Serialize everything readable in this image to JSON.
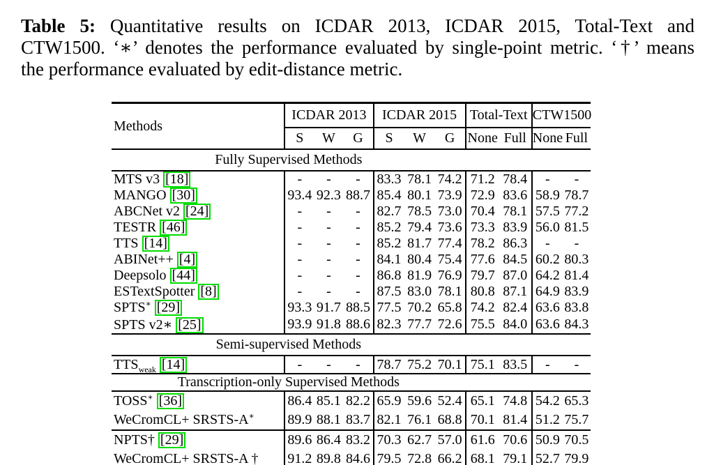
{
  "caption": {
    "label": "Table 5:",
    "lines": [
      "Quantitative results on ICDAR 2013, ICDAR 2015, Total-Text and",
      "CTW1500. ‘∗’ denotes the performance evaluated by single-point metric. ‘†’ means",
      "the performance evaluated by edit-distance metric."
    ]
  },
  "colors": {
    "citation_box_border": "#00dd00",
    "text": "#000000",
    "rules": "#000000"
  },
  "table": {
    "methods_label": "Methods",
    "groups": [
      {
        "label": "ICDAR 2013",
        "cols": [
          "S",
          "W",
          "G"
        ]
      },
      {
        "label": "ICDAR 2015",
        "cols": [
          "S",
          "W",
          "G"
        ]
      },
      {
        "label": "Total-Text",
        "cols": [
          "None",
          "Full"
        ]
      },
      {
        "label": "CTW1500",
        "cols": [
          "None",
          "Full"
        ]
      }
    ],
    "sections": [
      {
        "title": "Fully Supervised Methods",
        "rows": [
          {
            "method": "MTS v3",
            "cite": "18",
            "values": [
              "-",
              "-",
              "-",
              "83.3",
              "78.1",
              "74.2",
              "71.2",
              "78.4",
              "-",
              "-"
            ],
            "bold": []
          },
          {
            "method": "MANGO",
            "cite": "30",
            "values": [
              "93.4",
              "92.3",
              "88.7",
              "85.4",
              "80.1",
              "73.9",
              "72.9",
              "83.6",
              "58.9",
              "78.7"
            ],
            "bold": []
          },
          {
            "method": "ABCNet v2",
            "cite": "24",
            "values": [
              "-",
              "-",
              "-",
              "82.7",
              "78.5",
              "73.0",
              "70.4",
              "78.1",
              "57.5",
              "77.2"
            ],
            "bold": []
          },
          {
            "method": "TESTR",
            "cite": "46",
            "values": [
              "-",
              "-",
              "-",
              "85.2",
              "79.4",
              "73.6",
              "73.3",
              "83.9",
              "56.0",
              "81.5"
            ],
            "bold": []
          },
          {
            "method": "TTS",
            "cite": "14",
            "values": [
              "-",
              "-",
              "-",
              "85.2",
              "81.7",
              "77.4",
              "78.2",
              "86.3",
              "-",
              "-"
            ],
            "bold": []
          },
          {
            "method": "ABINet++",
            "cite": "4",
            "values": [
              "-",
              "-",
              "-",
              "84.1",
              "80.4",
              "75.4",
              "77.6",
              "84.5",
              "60.2",
              "80.3"
            ],
            "bold": []
          },
          {
            "method": "Deepsolo",
            "cite": "44",
            "values": [
              "-",
              "-",
              "-",
              "86.8",
              "81.9",
              "76.9",
              "79.7",
              "87.0",
              "64.2",
              "81.4"
            ],
            "bold": []
          },
          {
            "method": "ESTextSpotter",
            "cite": "8",
            "values": [
              "-",
              "-",
              "-",
              "87.5",
              "83.0",
              "78.1",
              "80.8",
              "87.1",
              "64.9",
              "83.9"
            ],
            "bold": []
          },
          {
            "method": "SPTS",
            "sup": "∗",
            "cite": "29",
            "values": [
              "93.3",
              "91.7",
              "88.5",
              "77.5",
              "70.2",
              "65.8",
              "74.2",
              "82.4",
              "63.6",
              "83.8"
            ],
            "bold": []
          },
          {
            "method": "SPTS v2∗",
            "cite": "25",
            "values": [
              "93.9",
              "91.8",
              "88.6",
              "82.3",
              "77.7",
              "72.6",
              "75.5",
              "84.0",
              "63.6",
              "84.3"
            ],
            "bold": []
          }
        ]
      },
      {
        "title": "Semi-supervised Methods",
        "rows": [
          {
            "method": "TTS",
            "sub": "weak",
            "cite": "14",
            "values": [
              "-",
              "-",
              "-",
              "78.7",
              "75.2",
              "70.1",
              "75.1",
              "83.5",
              "-",
              "-"
            ],
            "bold": []
          }
        ]
      },
      {
        "title": "Transcription-only Supervised Methods",
        "rows": [
          {
            "method": "TOSS",
            "sup": "∗",
            "cite": "36",
            "values": [
              "86.4",
              "85.1",
              "82.2",
              "65.9",
              "59.6",
              "52.4",
              "65.1",
              "74.8",
              "54.2",
              "65.3"
            ],
            "bold": [
              8
            ]
          },
          {
            "method": "WeCromCL+ SRSTS-A",
            "sup": "∗",
            "bold_method": true,
            "values": [
              "89.9",
              "88.1",
              "83.7",
              "82.1",
              "76.1",
              "68.8",
              "70.1",
              "81.4",
              "51.2",
              "75.7"
            ],
            "bold": [
              0,
              1,
              2,
              3,
              4,
              5,
              6,
              7,
              9
            ]
          }
        ]
      },
      {
        "title": null,
        "rows": [
          {
            "method": "NPTS†",
            "cite": "29",
            "values": [
              "89.6",
              "86.4",
              "83.2",
              "70.3",
              "62.7",
              "57.0",
              "61.6",
              "70.6",
              "50.9",
              "70.5"
            ],
            "bold": []
          },
          {
            "method": "WeCromCL+ SRSTS-A †",
            "bold_method": true,
            "values": [
              "91.2",
              "89.8",
              "84.6",
              "79.5",
              "72.8",
              "66.2",
              "68.1",
              "79.1",
              "52.7",
              "79.9"
            ],
            "bold": [
              0,
              1,
              2,
              3,
              4,
              5,
              6,
              7,
              8,
              9
            ]
          }
        ]
      }
    ]
  }
}
